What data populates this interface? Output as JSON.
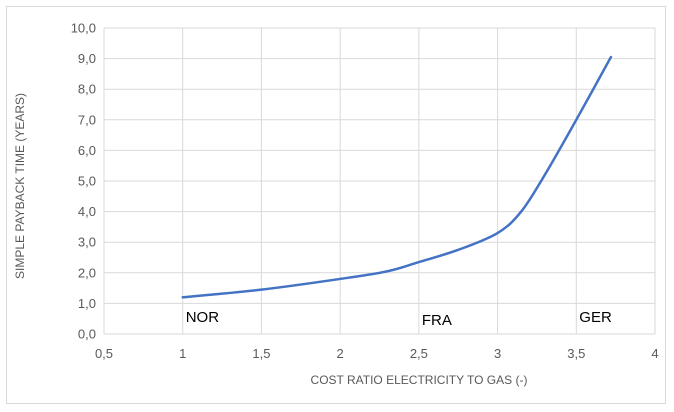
{
  "chart_data": {
    "type": "line",
    "title": "",
    "xlabel": "COST RATIO ELECTRICITY TO GAS (-)",
    "ylabel": "SIMPLE PAYBACK TIME (YEARS)",
    "xlim": [
      0.5,
      4
    ],
    "ylim": [
      0,
      10
    ],
    "x_tick_labels": [
      "0,5",
      "1",
      "1,5",
      "2",
      "2,5",
      "3",
      "3,5",
      "4"
    ],
    "y_tick_labels": [
      "0,0",
      "1,0",
      "2,0",
      "3,0",
      "4,0",
      "5,0",
      "6,0",
      "7,0",
      "8,0",
      "9,0",
      "10,0"
    ],
    "grid": true,
    "series": [
      {
        "color": "#4472c4",
        "x": [
          1.0,
          1.5,
          2.0,
          2.3,
          2.5,
          2.75,
          3.0,
          3.15,
          3.3,
          3.5,
          3.72
        ],
        "y": [
          1.2,
          1.45,
          1.8,
          2.05,
          2.35,
          2.75,
          3.3,
          4.0,
          5.2,
          7.0,
          9.05
        ]
      }
    ],
    "annotations": [
      {
        "text": "NOR",
        "x": 1.0,
        "y": 0.55
      },
      {
        "text": "FRA",
        "x": 2.5,
        "y": 0.45
      },
      {
        "text": "GER",
        "x": 3.5,
        "y": 0.55
      }
    ]
  }
}
